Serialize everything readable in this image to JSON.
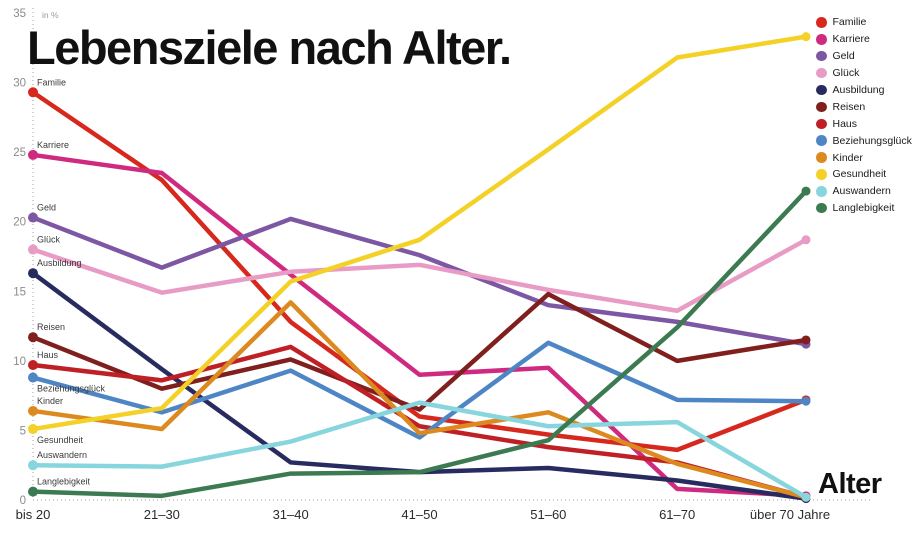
{
  "title": "Lebensziele nach Alter.",
  "y_unit_note": "in %",
  "x_axis_title": "Alter",
  "chart_data": {
    "type": "line",
    "title": "Lebensziele nach Alter.",
    "xlabel": "Alter",
    "ylabel": "in %",
    "ylim": [
      0,
      35
    ],
    "y_ticks": [
      0,
      5,
      10,
      15,
      20,
      25,
      30,
      35
    ],
    "grid": false,
    "legend_position": "top-right",
    "categories": [
      "bis 20",
      "21–30",
      "31–40",
      "41–50",
      "51–60",
      "61–70",
      "über 70 Jahre"
    ],
    "series": [
      {
        "name": "Familie",
        "color": "#d7281e",
        "label_below": false,
        "values": [
          29.3,
          23.0,
          12.8,
          6.0,
          4.7,
          3.6,
          7.2
        ]
      },
      {
        "name": "Karriere",
        "color": "#cf2a7f",
        "label_below": false,
        "values": [
          24.8,
          23.5,
          16.2,
          9.0,
          9.5,
          0.8,
          0.3
        ]
      },
      {
        "name": "Geld",
        "color": "#7d57a3",
        "label_below": false,
        "values": [
          20.3,
          16.7,
          20.2,
          17.6,
          14.0,
          12.8,
          11.2
        ]
      },
      {
        "name": "Glück",
        "color": "#e89cc5",
        "label_below": false,
        "values": [
          18.0,
          14.9,
          16.4,
          16.9,
          15.1,
          13.6,
          18.7
        ]
      },
      {
        "name": "Ausbildung",
        "color": "#272b5f",
        "label_below": false,
        "values": [
          16.3,
          9.4,
          2.7,
          2.0,
          2.3,
          1.4,
          0.1
        ]
      },
      {
        "name": "Reisen",
        "color": "#7f1f1e",
        "label_below": false,
        "values": [
          11.7,
          8.0,
          10.1,
          6.5,
          14.8,
          10.0,
          11.5
        ]
      },
      {
        "name": "Haus",
        "color": "#bf2026",
        "label_below": false,
        "values": [
          9.7,
          8.6,
          11.0,
          5.3,
          3.8,
          2.7,
          0.2
        ]
      },
      {
        "name": "Beziehungsglück",
        "color": "#4e86c5",
        "label_below": true,
        "values": [
          8.8,
          6.3,
          9.3,
          4.5,
          11.3,
          7.2,
          7.1
        ]
      },
      {
        "name": "Kinder",
        "color": "#dc8a1f",
        "label_below": false,
        "values": [
          6.4,
          5.1,
          14.2,
          4.8,
          6.3,
          2.6,
          0.2
        ]
      },
      {
        "name": "Gesundheit",
        "color": "#f4d127",
        "label_below": true,
        "values": [
          5.1,
          6.6,
          15.7,
          18.7,
          25.2,
          31.8,
          33.3
        ]
      },
      {
        "name": "Auswandern",
        "color": "#87d5dd",
        "label_below": false,
        "values": [
          2.5,
          2.4,
          4.2,
          7.0,
          5.3,
          5.6,
          0.2
        ]
      },
      {
        "name": "Langlebigkeit",
        "color": "#3c7b51",
        "label_below": false,
        "values": [
          0.6,
          0.3,
          1.9,
          2.0,
          4.3,
          12.4,
          22.2
        ]
      }
    ]
  }
}
